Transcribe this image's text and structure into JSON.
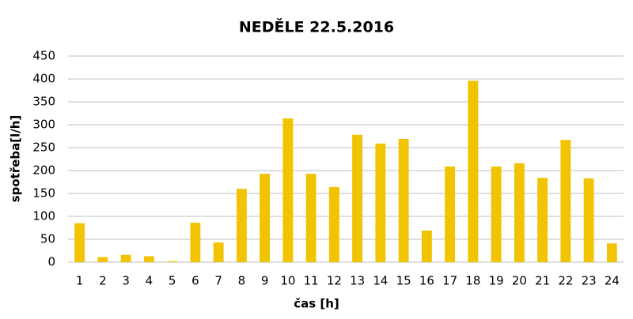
{
  "chart_data": {
    "type": "bar",
    "title": "NEDĚLE 22.5.2016",
    "xlabel": "čas [h]",
    "ylabel": "spotřeba[l/h]",
    "categories": [
      "1",
      "2",
      "3",
      "4",
      "5",
      "6",
      "7",
      "8",
      "9",
      "10",
      "11",
      "12",
      "13",
      "14",
      "15",
      "16",
      "17",
      "18",
      "19",
      "20",
      "21",
      "22",
      "23",
      "24"
    ],
    "values": [
      85,
      11,
      16,
      13,
      2,
      86,
      43,
      160,
      193,
      314,
      193,
      164,
      278,
      259,
      269,
      69,
      209,
      396,
      209,
      216,
      184,
      267,
      183,
      41
    ],
    "color": "#f2c300",
    "ylim": [
      0,
      450
    ],
    "yticks": [
      0,
      50,
      100,
      150,
      200,
      250,
      300,
      350,
      400,
      450
    ],
    "grid": true
  }
}
